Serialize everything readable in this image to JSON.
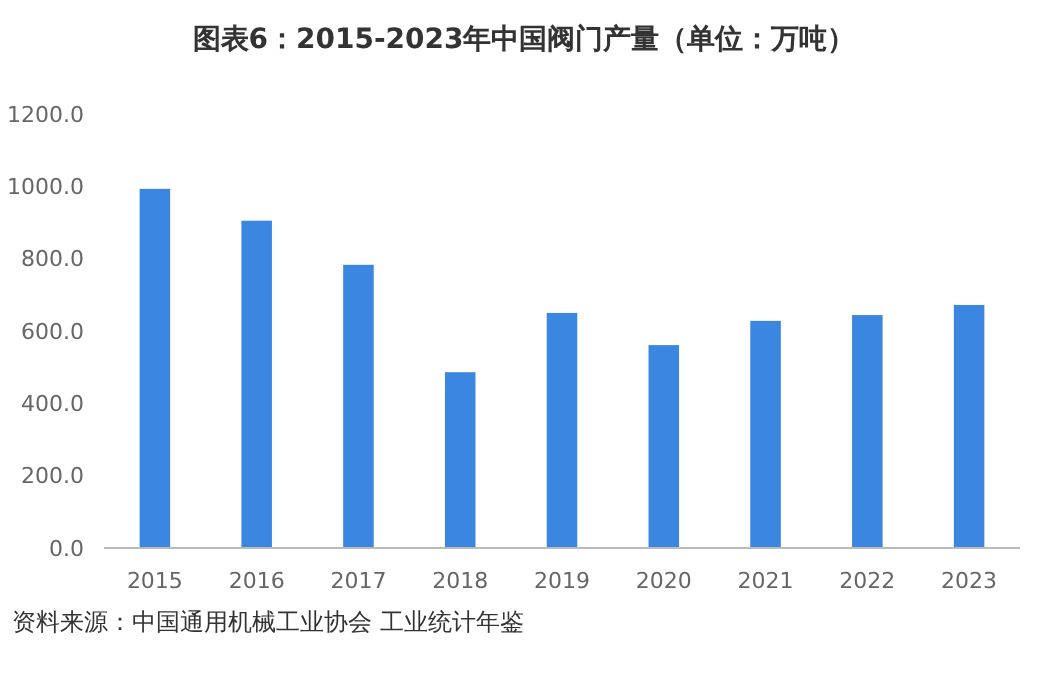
{
  "chart_data": {
    "type": "bar",
    "title": "图表6：2015-2023年中国阀门产量（单位：万吨）",
    "categories": [
      "2015",
      "2016",
      "2017",
      "2018",
      "2019",
      "2020",
      "2021",
      "2022",
      "2023"
    ],
    "values": [
      993,
      905,
      783,
      486,
      650,
      561,
      628,
      644,
      672
    ],
    "color": "#3a86e0",
    "ylim": [
      0,
      1200
    ],
    "yticks": [
      {
        "value": 0,
        "label": "0.0"
      },
      {
        "value": 200,
        "label": "200.0"
      },
      {
        "value": 400,
        "label": "400.0"
      },
      {
        "value": 600,
        "label": "600.0"
      },
      {
        "value": 800,
        "label": "800.0"
      },
      {
        "value": 1000,
        "label": "1000.0"
      },
      {
        "value": 1200,
        "label": "1200.0"
      }
    ],
    "grid": false,
    "annotations": [
      "资料来源：中国通用机械工业协会 工业统计年鉴"
    ]
  }
}
